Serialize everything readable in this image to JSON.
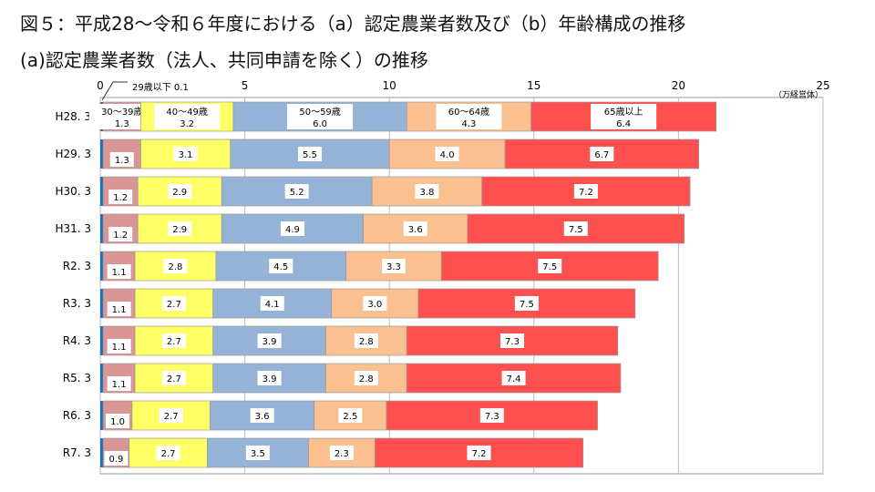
{
  "title": "図５：平成28～令和６年度における（a）認定農業者数及び（b）年齢構成の推移",
  "subtitle": "(a)認定農業者数（法人、共同申請を除く）の推移",
  "chart_data": {
    "type": "bar",
    "orientation": "horizontal",
    "stacked": true,
    "unit": "（万経営体）",
    "xlim": [
      0,
      25
    ],
    "xticks": [
      0,
      5,
      10,
      15,
      20,
      25
    ],
    "grid": true,
    "categories": [
      "H28. 3",
      "H29. 3",
      "H30. 3",
      "H31. 3",
      "R2. 3",
      "R3. 3",
      "R4. 3",
      "R5. 3",
      "R6. 3",
      "R7. 3"
    ],
    "series": [
      {
        "name": "29歳以下",
        "color": "#1f6fbf",
        "values": [
          0.1,
          0.1,
          0.1,
          0.1,
          0.1,
          0.1,
          0.1,
          0.1,
          0.1,
          0.1
        ]
      },
      {
        "name": "30～39歳",
        "color": "#d99694",
        "values": [
          1.3,
          1.3,
          1.2,
          1.2,
          1.1,
          1.1,
          1.1,
          1.1,
          1.0,
          0.9
        ]
      },
      {
        "name": "40～49歳",
        "color": "#ffff66",
        "values": [
          3.2,
          3.1,
          2.9,
          2.9,
          2.8,
          2.7,
          2.7,
          2.7,
          2.7,
          2.7
        ]
      },
      {
        "name": "50～59歳",
        "color": "#95b3d7",
        "values": [
          6.0,
          5.5,
          5.2,
          4.9,
          4.5,
          4.1,
          3.9,
          3.9,
          3.6,
          3.5
        ]
      },
      {
        "name": "60～64歳",
        "color": "#fac090",
        "values": [
          4.3,
          4.0,
          3.8,
          3.6,
          3.3,
          3.0,
          2.8,
          2.8,
          2.5,
          2.3
        ]
      },
      {
        "name": "65歳以上",
        "color": "#ff5050",
        "values": [
          6.4,
          6.7,
          7.2,
          7.5,
          7.5,
          7.5,
          7.3,
          7.4,
          7.3,
          7.2
        ]
      }
    ],
    "annotation": "29歳以下 0.1"
  }
}
